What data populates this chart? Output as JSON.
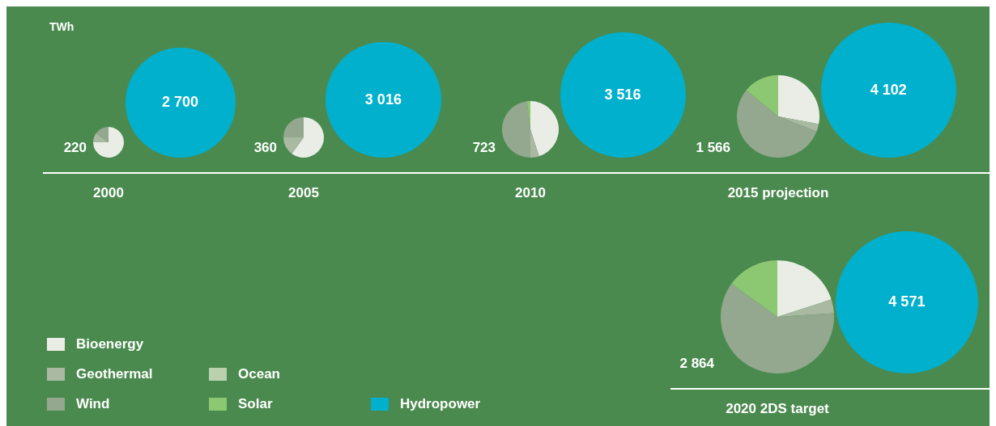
{
  "chart_data": [
    {
      "type": "pie",
      "title": "2000",
      "ylabel": "TWh",
      "legend": "bottom right",
      "categories": [
        "Bioenergy",
        "Geothermal",
        "Ocean",
        "Wind",
        "Solar"
      ],
      "values": [
        75,
        10,
        0,
        15,
        0
      ],
      "colors": [
        "#e9ede6",
        "#a9b9a2",
        "#b9d2ad",
        "#93a88e",
        "#8cc872"
      ],
      "annotations": [
        "220"
      ]
    },
    {
      "type": "pie",
      "legend": "bottom right",
      "categories": [
        "Hydropower"
      ],
      "values": [
        2700
      ],
      "colors": [
        "#00b0cc"
      ],
      "value_labels": [
        "2 700"
      ]
    },
    {
      "type": "pie",
      "title": "2005",
      "categories": [
        null,
        null,
        null,
        null,
        null
      ],
      "values": [
        60,
        15,
        0,
        25,
        0
      ],
      "colors": [
        "#e9ede6",
        "#a9b9a2",
        "#b9d2ad",
        "#93a88e",
        "#8cc872"
      ],
      "annotations": [
        "360"
      ]
    },
    {
      "type": "pie",
      "categories": [
        null
      ],
      "values": [
        3016
      ],
      "colors": [
        "#00b0cc"
      ],
      "value_labels": [
        "3 016"
      ]
    },
    {
      "type": "pie",
      "title": "2010",
      "categories": [
        null,
        null,
        null,
        null,
        null
      ],
      "values": [
        45,
        5,
        0,
        48,
        2
      ],
      "colors": [
        "#e9ede6",
        "#a9b9a2",
        "#b9d2ad",
        "#93a88e",
        "#8cc872"
      ],
      "annotations": [
        "723"
      ]
    },
    {
      "type": "pie",
      "categories": [
        null
      ],
      "values": [
        3516
      ],
      "colors": [
        "#00b0cc"
      ],
      "value_labels": [
        "3 516"
      ]
    },
    {
      "type": "pie",
      "title": "2015 projection",
      "categories": [
        null,
        null,
        null,
        null,
        null
      ],
      "values": [
        28,
        3,
        0,
        55,
        14
      ],
      "colors": [
        "#e9ede6",
        "#a9b9a2",
        "#b9d2ad",
        "#93a88e",
        "#8cc872"
      ],
      "annotations": [
        "1 566"
      ]
    },
    {
      "type": "pie",
      "categories": [
        null
      ],
      "values": [
        4102
      ],
      "colors": [
        "#00b0cc"
      ],
      "value_labels": [
        "4 102"
      ]
    },
    {
      "type": "pie",
      "title": "2020 2DS target",
      "categories": [
        null,
        null,
        null,
        null,
        null
      ],
      "values": [
        20,
        4,
        0,
        61,
        15
      ],
      "colors": [
        "#e9ede6",
        "#a9b9a2",
        "#b9d2ad",
        "#93a88e",
        "#8cc872"
      ],
      "annotations": [
        "2 864"
      ]
    },
    {
      "type": "pie",
      "categories": [
        null
      ],
      "values": [
        4571
      ],
      "colors": [
        "#00b0cc"
      ],
      "value_labels": [
        "4 571"
      ]
    }
  ]
}
